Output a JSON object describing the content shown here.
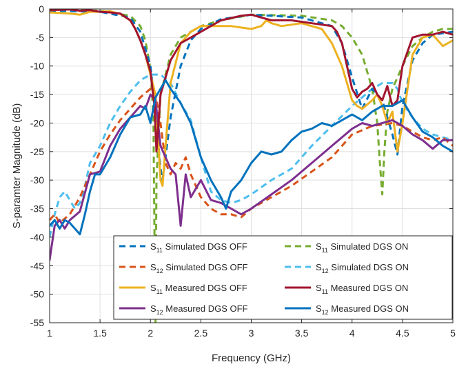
{
  "chart_data": {
    "type": "line",
    "title": "",
    "xlabel": "Frequency (GHz)",
    "ylabel": "S-paramter Magnitude (dB)",
    "xlim": [
      1,
      5
    ],
    "ylim": [
      -55,
      0
    ],
    "xticks": [
      1,
      1.5,
      2,
      2.5,
      3,
      3.5,
      4,
      4.5,
      5
    ],
    "xtick_labels": [
      "1",
      "1.5",
      "2",
      "2.5",
      "3",
      "3.5",
      "4",
      "4.5",
      "5"
    ],
    "yticks": [
      0,
      -5,
      -10,
      -15,
      -20,
      -25,
      -30,
      -35,
      -40,
      -45,
      -50,
      -55
    ],
    "ytick_labels": [
      "0",
      "-5",
      "-10",
      "-15",
      "-20",
      "-25",
      "-30",
      "-35",
      "-40",
      "-45",
      "-50",
      "-55"
    ],
    "grid": true,
    "legend_position": "bottom-right",
    "series": [
      {
        "name": "S11 Simulated DGS OFF",
        "param": "S",
        "sub": "11",
        "label": "Simulated DGS OFF",
        "color": "#0072BD",
        "dash": true,
        "legend_col": 0,
        "legend_row": 0,
        "x": [
          1.0,
          1.5,
          1.8,
          1.9,
          2.0,
          2.05,
          2.1,
          2.12,
          2.2,
          2.3,
          2.4,
          2.5,
          2.7,
          3.0,
          3.5,
          3.8,
          3.9,
          4.0,
          4.1,
          4.2,
          4.3,
          4.4,
          4.45,
          4.5,
          4.6,
          4.7,
          4.8,
          5.0
        ],
        "y": [
          -0.3,
          -0.5,
          -1.5,
          -4.0,
          -10.0,
          -18.0,
          -28.0,
          -30.0,
          -19.0,
          -10.0,
          -5.5,
          -3.5,
          -1.8,
          -1.0,
          -1.5,
          -3.0,
          -6.0,
          -12.0,
          -17.5,
          -14.0,
          -16.0,
          -22.0,
          -25.5,
          -17.0,
          -9.0,
          -6.0,
          -4.5,
          -4.0
        ]
      },
      {
        "name": "S12 Simulated DGS OFF",
        "param": "S",
        "sub": "12",
        "label": "Simulated DGS OFF",
        "color": "#D95319",
        "dash": true,
        "legend_col": 0,
        "legend_row": 1,
        "x": [
          1.0,
          1.05,
          1.1,
          1.2,
          1.3,
          1.4,
          1.5,
          1.6,
          1.7,
          1.8,
          1.9,
          2.0,
          2.05,
          2.1,
          2.15,
          2.2,
          2.25,
          2.3,
          2.35,
          2.4,
          2.5,
          2.6,
          2.7,
          2.8,
          2.9,
          3.0,
          3.2,
          3.4,
          3.6,
          3.8,
          4.0,
          4.2,
          4.4,
          4.5,
          4.6,
          4.7,
          4.8,
          4.9,
          5.0
        ],
        "y": [
          -37.0,
          -36.0,
          -37.5,
          -36.0,
          -33.0,
          -29.0,
          -25.0,
          -22.0,
          -19.5,
          -17.5,
          -15.5,
          -14.0,
          -15.0,
          -20.0,
          -27.0,
          -29.0,
          -27.0,
          -28.0,
          -26.0,
          -29.0,
          -33.0,
          -35.0,
          -36.0,
          -36.0,
          -36.5,
          -35.0,
          -33.0,
          -31.0,
          -28.5,
          -26.0,
          -22.0,
          -20.5,
          -20.0,
          -20.5,
          -21.5,
          -22.5,
          -23.0,
          -22.5,
          -24.0
        ]
      },
      {
        "name": "S11 Measured DGS OFF",
        "param": "S",
        "sub": "11",
        "label": "Measured DGS OFF",
        "color": "#EDB120",
        "dash": false,
        "legend_col": 0,
        "legend_row": 2,
        "x": [
          1.0,
          1.2,
          1.3,
          1.4,
          1.5,
          1.6,
          1.7,
          1.8,
          1.85,
          1.9,
          1.95,
          2.0,
          2.05,
          2.1,
          2.12,
          2.15,
          2.2,
          2.3,
          2.4,
          2.5,
          2.6,
          2.8,
          3.0,
          3.1,
          3.15,
          3.2,
          3.3,
          3.5,
          3.7,
          3.8,
          3.9,
          3.95,
          4.0,
          4.05,
          4.1,
          4.2,
          4.25,
          4.3,
          4.35,
          4.4,
          4.45,
          4.5,
          4.6,
          4.7,
          4.8,
          4.9,
          5.0
        ],
        "y": [
          -0.6,
          -0.8,
          -1.0,
          -0.5,
          -0.5,
          -0.4,
          -0.9,
          -2.0,
          -3.5,
          -5.5,
          -8.0,
          -11.5,
          -15.0,
          -30.0,
          -31.0,
          -24.0,
          -13.0,
          -6.0,
          -4.0,
          -3.0,
          -3.0,
          -3.0,
          -3.5,
          -3.0,
          -2.0,
          -2.5,
          -3.0,
          -2.5,
          -3.5,
          -6.0,
          -10.0,
          -13.0,
          -16.0,
          -17.0,
          -17.5,
          -16.0,
          -15.0,
          -17.0,
          -20.0,
          -18.0,
          -25.0,
          -20.0,
          -8.0,
          -5.0,
          -4.5,
          -6.5,
          -5.5
        ]
      },
      {
        "name": "S12 Measured DGS OFF",
        "param": "S",
        "sub": "12",
        "label": "Measured DGS OFF",
        "color": "#7E2F8E",
        "dash": false,
        "legend_col": 0,
        "legend_row": 3,
        "x": [
          1.0,
          1.05,
          1.1,
          1.15,
          1.2,
          1.3,
          1.4,
          1.5,
          1.6,
          1.7,
          1.8,
          1.9,
          1.95,
          2.0,
          2.05,
          2.1,
          2.15,
          2.2,
          2.25,
          2.3,
          2.35,
          2.4,
          2.5,
          2.6,
          2.7,
          2.8,
          2.9,
          3.0,
          3.2,
          3.4,
          3.6,
          3.8,
          4.0,
          4.1,
          4.2,
          4.3,
          4.4,
          4.5,
          4.6,
          4.7,
          4.8,
          4.9,
          5.0
        ],
        "y": [
          -44.0,
          -38.0,
          -37.0,
          -38.5,
          -37.0,
          -35.5,
          -29.0,
          -28.5,
          -24.0,
          -21.0,
          -19.0,
          -17.0,
          -17.5,
          -15.0,
          -16.0,
          -24.0,
          -26.0,
          -28.0,
          -29.0,
          -38.0,
          -29.0,
          -33.0,
          -30.0,
          -33.5,
          -34.0,
          -35.0,
          -36.0,
          -35.0,
          -32.5,
          -30.0,
          -27.0,
          -24.0,
          -21.0,
          -20.0,
          -20.5,
          -20.0,
          -19.5,
          -20.5,
          -22.0,
          -23.0,
          -24.5,
          -23.0,
          -23.0
        ]
      },
      {
        "name": "S11 Simulated DGS ON",
        "param": "S",
        "sub": "11",
        "label": "Simulated DGS ON",
        "color": "#77AC30",
        "dash": true,
        "legend_col": 1,
        "legend_row": 0,
        "x": [
          1.0,
          1.5,
          1.8,
          1.9,
          1.95,
          2.0,
          2.03,
          2.04,
          2.05,
          2.06,
          2.08,
          2.1,
          2.2,
          2.3,
          2.5,
          2.7,
          3.0,
          3.5,
          3.8,
          3.9,
          4.0,
          4.1,
          4.2,
          4.25,
          4.28,
          4.3,
          4.32,
          4.35,
          4.4,
          4.5,
          4.6,
          4.7,
          4.8,
          4.9,
          5.0
        ],
        "y": [
          -0.1,
          -0.3,
          -1.2,
          -3.0,
          -5.5,
          -10.5,
          -19.0,
          -40.0,
          -55.0,
          -30.0,
          -22.0,
          -15.0,
          -8.0,
          -5.0,
          -3.0,
          -2.0,
          -1.0,
          -1.2,
          -2.0,
          -3.0,
          -5.0,
          -8.0,
          -14.0,
          -20.0,
          -28.0,
          -32.5,
          -25.0,
          -18.0,
          -14.0,
          -10.0,
          -6.5,
          -5.0,
          -4.0,
          -3.5,
          -3.5
        ]
      },
      {
        "name": "S12 Simulated DGS ON",
        "param": "S",
        "sub": "12",
        "label": "Simulated DGS ON",
        "color": "#4DBEEE",
        "dash": true,
        "legend_col": 1,
        "legend_row": 1,
        "x": [
          1.0,
          1.05,
          1.1,
          1.15,
          1.2,
          1.25,
          1.3,
          1.35,
          1.4,
          1.5,
          1.6,
          1.7,
          1.8,
          1.9,
          2.0,
          2.1,
          2.2,
          2.3,
          2.4,
          2.5,
          2.6,
          2.7,
          2.8,
          2.9,
          3.0,
          3.2,
          3.4,
          3.6,
          3.8,
          4.0,
          4.2,
          4.3,
          4.4,
          4.45,
          4.5,
          4.6,
          4.7,
          4.8,
          4.9,
          5.0
        ],
        "y": [
          -40.0,
          -36.0,
          -33.0,
          -32.0,
          -33.5,
          -35.0,
          -34.0,
          -31.0,
          -27.0,
          -24.0,
          -20.0,
          -17.0,
          -14.5,
          -12.5,
          -11.5,
          -11.5,
          -13.0,
          -16.5,
          -19.5,
          -26.0,
          -32.0,
          -33.5,
          -34.0,
          -33.5,
          -32.5,
          -30.0,
          -28.0,
          -24.0,
          -20.5,
          -17.0,
          -14.0,
          -13.0,
          -13.0,
          -14.0,
          -16.5,
          -19.0,
          -21.0,
          -22.0,
          -22.5,
          -23.0
        ]
      },
      {
        "name": "S11 Measured DGS ON",
        "param": "S",
        "sub": "11",
        "label": "Measured DGS ON",
        "color": "#A2142F",
        "dash": false,
        "legend_col": 1,
        "legend_row": 2,
        "x": [
          1.0,
          1.2,
          1.3,
          1.4,
          1.5,
          1.6,
          1.7,
          1.8,
          1.85,
          1.9,
          1.95,
          2.0,
          2.04,
          2.06,
          2.08,
          2.1,
          2.15,
          2.2,
          2.3,
          2.4,
          2.5,
          2.7,
          2.9,
          3.0,
          3.2,
          3.4,
          3.6,
          3.8,
          3.85,
          3.9,
          3.95,
          4.0,
          4.05,
          4.1,
          4.15,
          4.2,
          4.25,
          4.3,
          4.35,
          4.4,
          4.45,
          4.5,
          4.6,
          4.7,
          4.8,
          4.9,
          5.0
        ],
        "y": [
          -0.2,
          -0.1,
          -0.3,
          -0.2,
          -0.5,
          -0.6,
          -0.8,
          -2.0,
          -3.5,
          -5.5,
          -8.0,
          -11.0,
          -17.0,
          -25.0,
          -20.0,
          -15.0,
          -12.0,
          -9.0,
          -6.0,
          -5.0,
          -4.0,
          -2.0,
          -1.2,
          -1.0,
          -2.0,
          -2.0,
          -2.5,
          -3.0,
          -4.0,
          -6.0,
          -10.0,
          -14.0,
          -15.5,
          -14.5,
          -14.0,
          -13.0,
          -15.0,
          -16.0,
          -13.5,
          -17.0,
          -16.0,
          -10.0,
          -5.0,
          -4.5,
          -4.5,
          -4.0,
          -4.5
        ]
      },
      {
        "name": "S12 Measured DGS ON",
        "param": "S",
        "sub": "12",
        "label": "Measured DGS ON",
        "color": "#0072BD",
        "dash": false,
        "legend_col": 1,
        "legend_row": 3,
        "x": [
          1.0,
          1.05,
          1.1,
          1.15,
          1.2,
          1.25,
          1.3,
          1.35,
          1.4,
          1.45,
          1.5,
          1.6,
          1.7,
          1.8,
          1.9,
          1.95,
          2.0,
          2.05,
          2.1,
          2.15,
          2.2,
          2.3,
          2.4,
          2.5,
          2.6,
          2.7,
          2.75,
          2.8,
          2.9,
          3.0,
          3.1,
          3.2,
          3.3,
          3.4,
          3.5,
          3.6,
          3.7,
          3.8,
          3.9,
          4.0,
          4.1,
          4.2,
          4.3,
          4.4,
          4.5,
          4.6,
          4.7,
          4.8,
          4.9,
          5.0
        ],
        "y": [
          -38.0,
          -37.0,
          -38.5,
          -37.0,
          -37.5,
          -38.5,
          -39.5,
          -36.0,
          -32.0,
          -29.0,
          -29.0,
          -26.0,
          -22.0,
          -19.0,
          -18.5,
          -17.0,
          -20.0,
          -15.5,
          -14.0,
          -12.5,
          -14.0,
          -16.5,
          -20.0,
          -26.0,
          -30.0,
          -33.0,
          -35.0,
          -32.0,
          -30.0,
          -27.0,
          -25.0,
          -25.5,
          -25.0,
          -23.0,
          -21.5,
          -21.0,
          -20.0,
          -20.5,
          -19.5,
          -18.5,
          -19.5,
          -18.0,
          -17.0,
          -17.0,
          -16.0,
          -19.0,
          -21.5,
          -22.5,
          -24.0,
          -25.0
        ]
      }
    ]
  }
}
